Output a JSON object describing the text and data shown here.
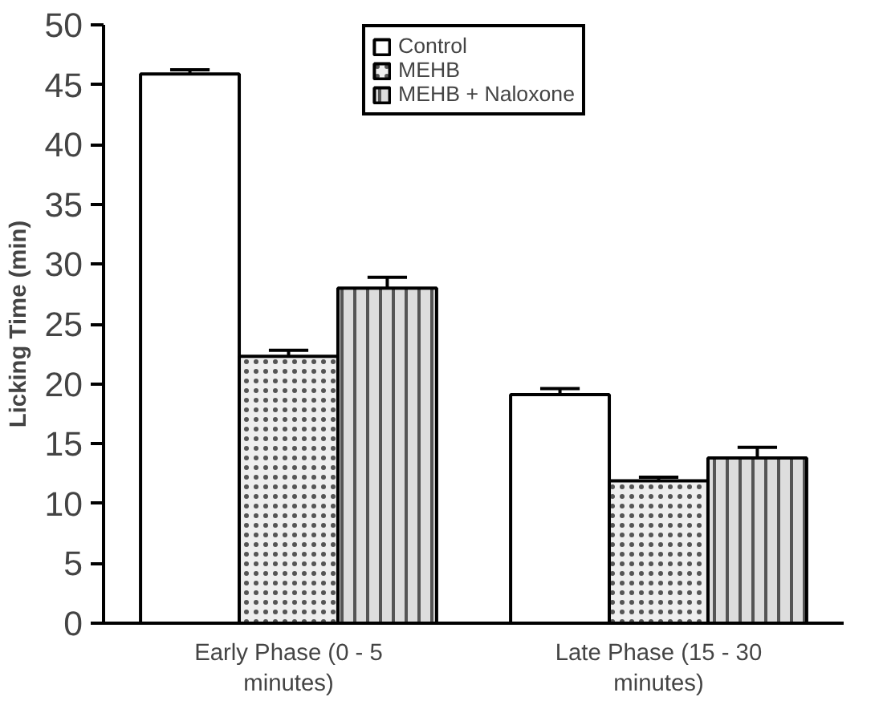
{
  "chart_data": {
    "type": "bar",
    "ylabel": "Licking Time (min)",
    "categories": [
      "Early Phase (0 - 5\nminutes)",
      "Late Phase (15 - 30\nminutes)"
    ],
    "series": [
      {
        "name": "Control",
        "color": "#ffffff",
        "values": [
          45.9,
          19.1
        ],
        "errors": [
          0.35,
          0.5
        ]
      },
      {
        "name": "MEHB",
        "color": "#eeeeee",
        "values": [
          22.3,
          11.9
        ],
        "errors": [
          0.5,
          0.3
        ]
      },
      {
        "name": "MEHB + Naloxone",
        "color": "#dddddd",
        "values": [
          28.0,
          13.8
        ],
        "errors": [
          0.9,
          0.9
        ]
      }
    ],
    "ylim": [
      0,
      50
    ],
    "yticks": [
      0,
      5,
      10,
      15,
      20,
      25,
      30,
      35,
      40,
      45,
      50
    ],
    "grid": false,
    "legend": "top"
  }
}
